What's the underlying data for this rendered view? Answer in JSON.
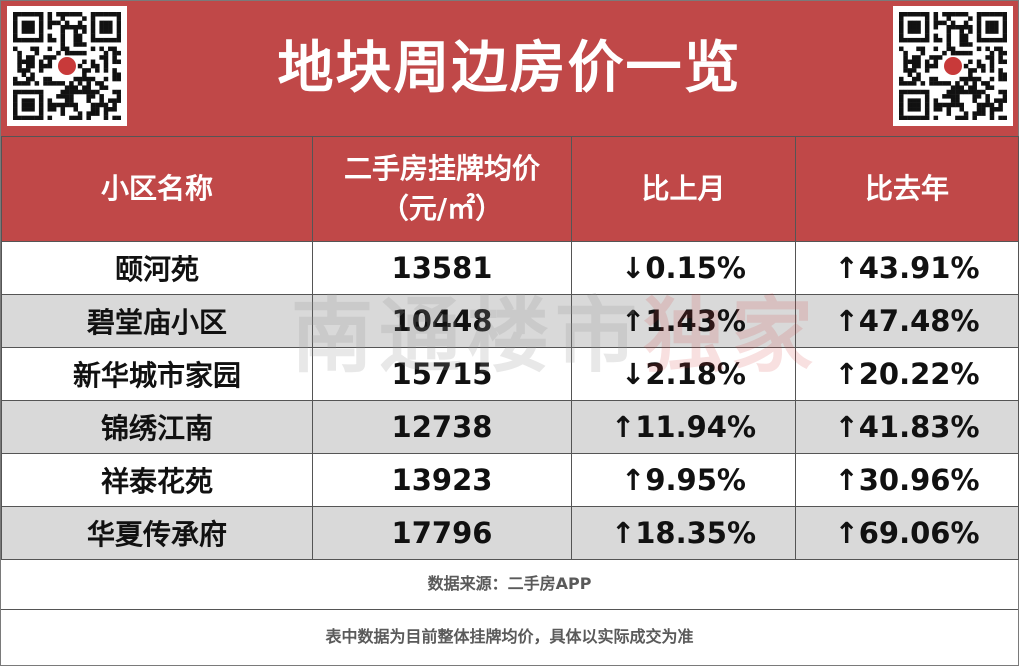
{
  "title": "地块周边房价一览",
  "table": {
    "headers": [
      {
        "line1": "小区名称",
        "line2": ""
      },
      {
        "line1": "二手房挂牌均价",
        "line2": "（元/㎡）"
      },
      {
        "line1": "比上月",
        "line2": ""
      },
      {
        "line1": "比去年",
        "line2": ""
      }
    ],
    "rows": [
      {
        "name": "颐河苑",
        "price": "13581",
        "mom": "↓0.15%",
        "yoy": "↑43.91%"
      },
      {
        "name": "碧堂庙小区",
        "price": "10448",
        "mom": "↑1.43%",
        "yoy": "↑47.48%"
      },
      {
        "name": "新华城市家园",
        "price": "15715",
        "mom": "↓2.18%",
        "yoy": "↑20.22%"
      },
      {
        "name": "锦绣江南",
        "price": "12738",
        "mom": "↑11.94%",
        "yoy": "↑41.83%"
      },
      {
        "name": "祥泰花苑",
        "price": "13923",
        "mom": "↑9.95%",
        "yoy": "↑30.96%"
      },
      {
        "name": "华夏传承府",
        "price": "17796",
        "mom": "↑18.35%",
        "yoy": "↑69.06%"
      }
    ]
  },
  "watermark": {
    "part1": "南通楼市",
    "part2": "独家"
  },
  "source": "数据来源：二手房APP",
  "note": "表中数据为目前整体挂牌均价，具体以实际成交为准",
  "colors": {
    "header_bg": "#c04848",
    "alt_row_bg": "#d9d9d9",
    "text": "#111111"
  }
}
